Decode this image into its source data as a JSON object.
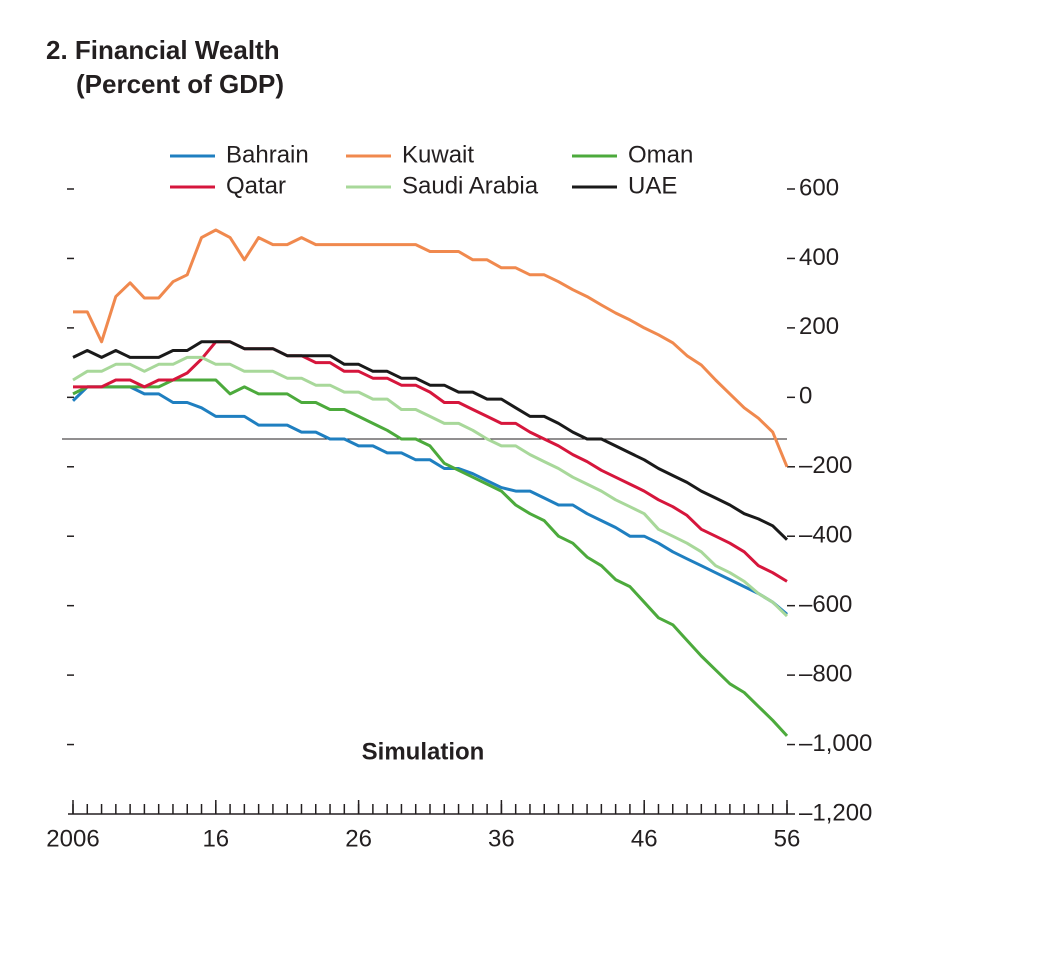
{
  "chart_data": {
    "type": "line",
    "title": "2. Financial Wealth",
    "subtitle": "(Percent of GDP)",
    "annotation": "Simulation",
    "hline": -120,
    "x": [
      2006,
      2007,
      2008,
      2009,
      2010,
      2011,
      2012,
      2013,
      2014,
      2015,
      2016,
      2017,
      2018,
      2019,
      2020,
      2021,
      2022,
      2023,
      2024,
      2025,
      2026,
      2027,
      2028,
      2029,
      2030,
      2031,
      2032,
      2033,
      2034,
      2035,
      2036,
      2037,
      2038,
      2039,
      2040,
      2041,
      2042,
      2043,
      2044,
      2045,
      2046,
      2047,
      2048,
      2049,
      2050,
      2051,
      2052,
      2053,
      2054,
      2055,
      2056
    ],
    "xlim": [
      2006,
      2056
    ],
    "xticks": [
      2006,
      {
        "value": 2016,
        "label": "16"
      },
      {
        "value": 2026,
        "label": "26"
      },
      {
        "value": 2036,
        "label": "36"
      },
      {
        "value": 2046,
        "label": "46"
      },
      {
        "value": 2056,
        "label": "56"
      }
    ],
    "ylim": [
      -1200,
      600
    ],
    "yticks": [
      600,
      400,
      200,
      0,
      {
        "value": -200,
        "label": "–200"
      },
      {
        "value": -400,
        "label": "–400"
      },
      {
        "value": -600,
        "label": "–600"
      },
      {
        "value": -800,
        "label": "–800"
      },
      {
        "value": -1000,
        "label": "–1,000"
      },
      {
        "value": -1200,
        "label": "–1,200"
      }
    ],
    "series": [
      {
        "name": "Bahrain",
        "color": "#1f7fc0",
        "values": [
          -10,
          30,
          30,
          30,
          30,
          10,
          10,
          -15,
          -15,
          -30,
          -55,
          -55,
          -55,
          -80,
          -80,
          -80,
          -100,
          -100,
          -120,
          -120,
          -140,
          -140,
          -160,
          -160,
          -180,
          -180,
          -205,
          -205,
          -220,
          -240,
          -260,
          -270,
          -270,
          -290,
          -310,
          -310,
          -335,
          -355,
          -375,
          -400,
          -400,
          -420,
          -445,
          -465,
          -485,
          -505,
          -525,
          -545,
          -565,
          -590,
          -625
        ]
      },
      {
        "name": "Kuwait",
        "color": "#f0894e",
        "values": [
          246,
          246,
          160,
          290,
          330,
          286,
          286,
          333,
          353,
          460,
          482,
          460,
          396,
          460,
          440,
          440,
          460,
          440,
          440,
          440,
          440,
          440,
          440,
          440,
          440,
          420,
          420,
          420,
          396,
          396,
          373,
          373,
          353,
          353,
          333,
          310,
          290,
          266,
          243,
          223,
          200,
          180,
          157,
          120,
          93,
          50,
          10,
          -30,
          -60,
          -100,
          -200
        ]
      },
      {
        "name": "Oman",
        "color": "#4caa3c",
        "values": [
          10,
          30,
          30,
          30,
          30,
          30,
          30,
          50,
          50,
          50,
          50,
          10,
          30,
          10,
          10,
          10,
          -15,
          -15,
          -35,
          -35,
          -55,
          -75,
          -95,
          -120,
          -120,
          -140,
          -190,
          -210,
          -230,
          -250,
          -270,
          -310,
          -335,
          -355,
          -400,
          -420,
          -460,
          -485,
          -525,
          -545,
          -590,
          -635,
          -655,
          -700,
          -745,
          -785,
          -825,
          -850,
          -890,
          -930,
          -975
        ]
      },
      {
        "name": "Qatar",
        "color": "#d6163c",
        "values": [
          30,
          30,
          30,
          50,
          50,
          30,
          50,
          50,
          70,
          110,
          160,
          160,
          140,
          140,
          140,
          120,
          120,
          100,
          100,
          75,
          75,
          55,
          55,
          35,
          35,
          15,
          -15,
          -15,
          -35,
          -55,
          -75,
          -75,
          -100,
          -120,
          -140,
          -165,
          -185,
          -210,
          -230,
          -250,
          -270,
          -295,
          -315,
          -340,
          -380,
          -400,
          -420,
          -445,
          -485,
          -505,
          -530
        ]
      },
      {
        "name": "Saudi Arabia",
        "color": "#a8d89a",
        "values": [
          50,
          75,
          75,
          95,
          95,
          75,
          95,
          95,
          115,
          115,
          95,
          95,
          75,
          75,
          75,
          55,
          55,
          35,
          35,
          15,
          15,
          -5,
          -5,
          -35,
          -35,
          -55,
          -75,
          -75,
          -95,
          -120,
          -140,
          -140,
          -165,
          -185,
          -205,
          -230,
          -250,
          -270,
          -295,
          -315,
          -335,
          -380,
          -400,
          -420,
          -445,
          -485,
          -505,
          -530,
          -565,
          -590,
          -630
        ]
      },
      {
        "name": "UAE",
        "color": "#1a1a1a",
        "values": [
          115,
          135,
          115,
          135,
          115,
          115,
          115,
          135,
          135,
          160,
          160,
          160,
          140,
          140,
          140,
          120,
          120,
          120,
          120,
          95,
          95,
          75,
          75,
          55,
          55,
          35,
          35,
          15,
          15,
          -5,
          -5,
          -30,
          -55,
          -55,
          -75,
          -100,
          -120,
          -120,
          -140,
          -160,
          -180,
          -205,
          -225,
          -245,
          -270,
          -290,
          -310,
          -335,
          -350,
          -370,
          -410
        ]
      }
    ]
  }
}
